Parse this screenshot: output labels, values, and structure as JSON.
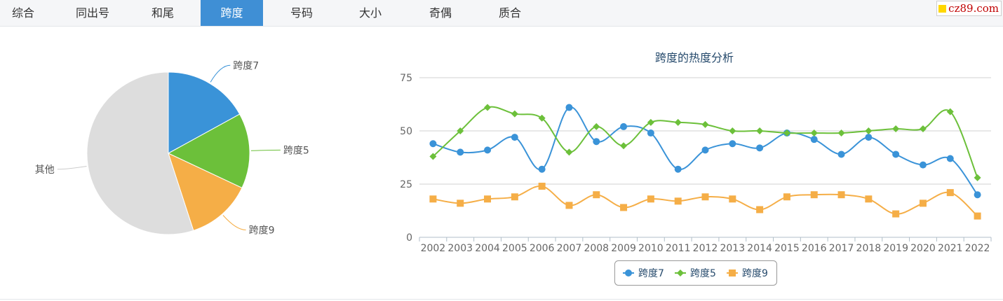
{
  "tabs": [
    {
      "label": "综合",
      "active": false
    },
    {
      "label": "同出号",
      "active": false
    },
    {
      "label": "和尾",
      "active": false
    },
    {
      "label": "跨度",
      "active": true
    },
    {
      "label": "号码",
      "active": false
    },
    {
      "label": "大小",
      "active": false
    },
    {
      "label": "奇偶",
      "active": false
    },
    {
      "label": "质合",
      "active": false
    }
  ],
  "logo": {
    "text": "cz89.com"
  },
  "colors": {
    "blue": "#3a93d8",
    "green": "#6cc03a",
    "orange": "#f5ae47",
    "gray": "#dddddd",
    "active_tab": "#3f8fd5"
  },
  "chart_data": [
    {
      "type": "pie",
      "slices": [
        {
          "label": "跨度7",
          "value": 17,
          "color": "#3a93d8"
        },
        {
          "label": "跨度5",
          "value": 15,
          "color": "#6cc03a"
        },
        {
          "label": "跨度9",
          "value": 13,
          "color": "#f5ae47"
        },
        {
          "label": "其他",
          "value": 55,
          "color": "#dddddd"
        }
      ]
    },
    {
      "type": "line",
      "title": "跨度的热度分析",
      "x": [
        "2002",
        "2003",
        "2004",
        "2005",
        "2006",
        "2007",
        "2008",
        "2009",
        "2010",
        "2011",
        "2012",
        "2013",
        "2014",
        "2015",
        "2016",
        "2017",
        "2018",
        "2019",
        "2020",
        "2021",
        "2022"
      ],
      "ylim": [
        0,
        75
      ],
      "yticks": [
        0,
        25,
        50,
        75
      ],
      "grid": true,
      "legend_position": "bottom-center",
      "series": [
        {
          "name": "跨度7",
          "color": "#3a93d8",
          "marker": "circle",
          "values": [
            44,
            40,
            41,
            47,
            32,
            61,
            45,
            52,
            49,
            32,
            41,
            44,
            42,
            49,
            46,
            39,
            47,
            39,
            34,
            37,
            20
          ]
        },
        {
          "name": "跨度5",
          "color": "#6cc03a",
          "marker": "diamond",
          "values": [
            38,
            50,
            61,
            58,
            56,
            40,
            52,
            43,
            54,
            54,
            53,
            50,
            50,
            49,
            49,
            49,
            50,
            51,
            51,
            59,
            28
          ]
        },
        {
          "name": "跨度9",
          "color": "#f5ae47",
          "marker": "square",
          "values": [
            18,
            16,
            18,
            19,
            24,
            15,
            20,
            14,
            18,
            17,
            19,
            18,
            13,
            19,
            20,
            20,
            18,
            11,
            16,
            21,
            10
          ]
        }
      ]
    }
  ]
}
